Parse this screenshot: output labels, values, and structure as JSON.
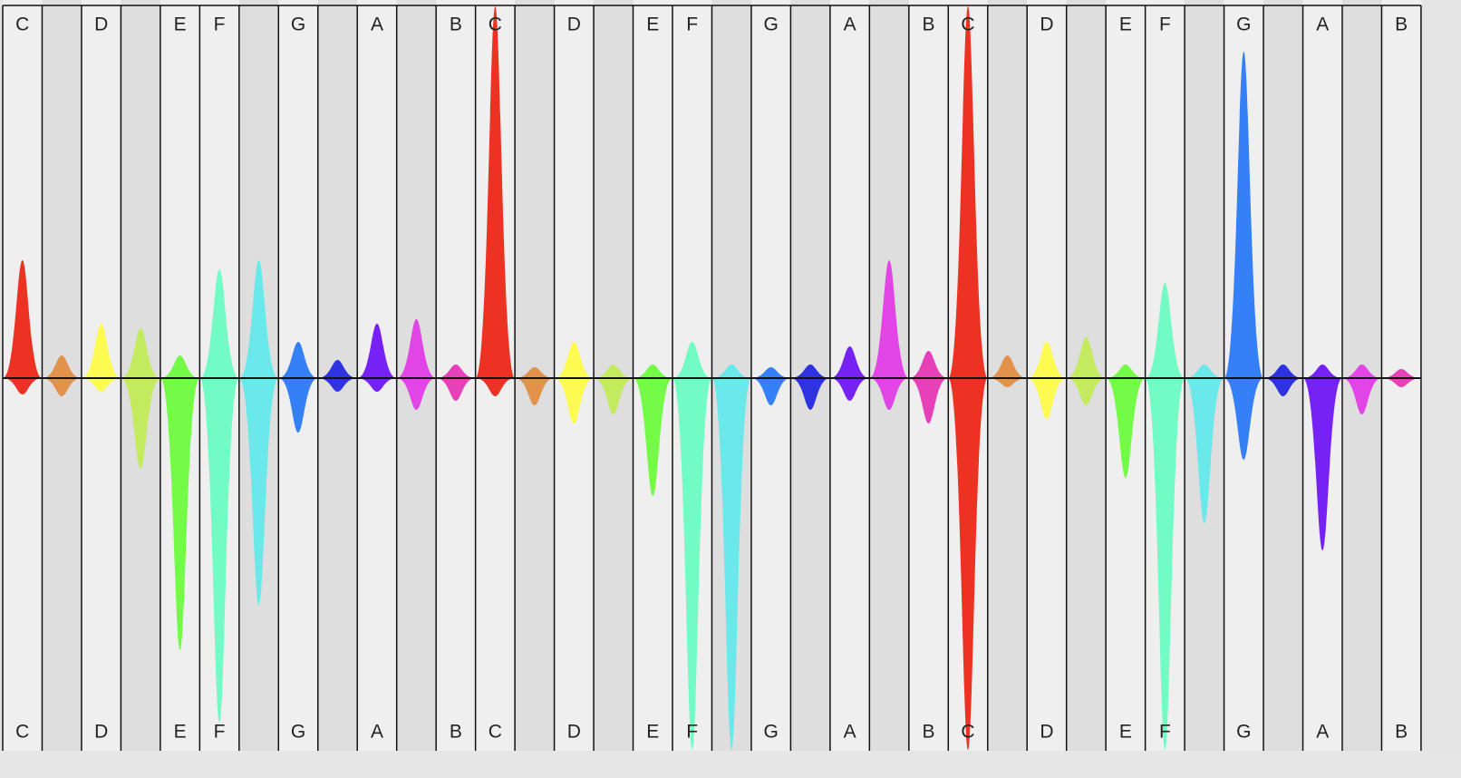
{
  "top_row": [
    "C",
    null,
    "D",
    null,
    "E",
    "F",
    null,
    "G",
    null,
    "A",
    null,
    "B",
    "C",
    null,
    "D",
    null,
    "E",
    "F",
    null,
    "G",
    null,
    "A",
    null,
    "B",
    "C",
    null,
    "D",
    null,
    "E",
    "F",
    null,
    "G",
    null,
    "A",
    null,
    "B"
  ],
  "bottom_row": [
    "C",
    null,
    "D",
    null,
    "E",
    "F",
    null,
    "G",
    null,
    "A",
    null,
    "B",
    "C",
    null,
    "D",
    null,
    "E",
    "F",
    null,
    "G",
    null,
    "A",
    null,
    "B",
    "C",
    null,
    "D",
    null,
    "E",
    "F",
    null,
    "G",
    null,
    "A",
    null,
    "B"
  ]
}
